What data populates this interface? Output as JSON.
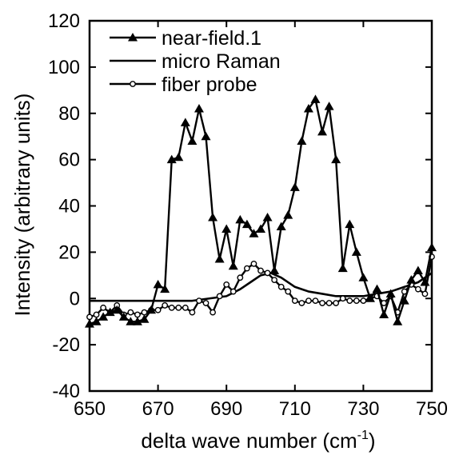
{
  "chart_data": {
    "type": "line",
    "xlabel": "delta wave number (cm",
    "xlabel_sup": "-1",
    "xlabel_close": ")",
    "ylabel": "Intensity (arbitrary units)",
    "xlim": [
      650,
      750
    ],
    "ylim": [
      -40,
      120
    ],
    "xticks": [
      650,
      670,
      690,
      710,
      730,
      750
    ],
    "yticks": [
      -40,
      -20,
      0,
      20,
      40,
      60,
      80,
      100,
      120
    ],
    "legend_position": "top-left",
    "grid": false,
    "series": [
      {
        "name": "near-field.1",
        "marker": "triangle",
        "x": [
          650,
          652,
          654,
          656,
          658,
          660,
          662,
          664,
          666,
          668,
          670,
          672,
          674,
          676,
          678,
          680,
          682,
          684,
          686,
          688,
          690,
          692,
          694,
          696,
          698,
          700,
          702,
          704,
          706,
          708,
          710,
          712,
          714,
          716,
          718,
          720,
          722,
          724,
          726,
          728,
          730,
          732,
          734,
          736,
          738,
          740,
          742,
          744,
          746,
          748,
          750
        ],
        "y": [
          -11,
          -10,
          -8,
          -6,
          -5,
          -8,
          -10,
          -10,
          -9,
          -5,
          6,
          4,
          60,
          61,
          76,
          68,
          82,
          70,
          35,
          17,
          30,
          14,
          34,
          32,
          28,
          30,
          35,
          12,
          31,
          36,
          48,
          68,
          82,
          86,
          72,
          83,
          60,
          13,
          32,
          20,
          9,
          0,
          4,
          -7,
          2,
          -10,
          -1,
          8,
          12,
          7,
          22
        ]
      },
      {
        "name": "micro Raman",
        "marker": "none",
        "x": [
          650,
          655,
          660,
          665,
          670,
          675,
          680,
          685,
          690,
          694,
          697,
          700,
          703,
          706,
          710,
          714,
          718,
          722,
          726,
          730,
          734,
          738,
          742,
          746,
          750
        ],
        "y": [
          -1,
          -1,
          -1,
          -1,
          -1,
          -1,
          -1,
          0,
          1,
          4,
          7,
          10,
          11,
          9,
          5,
          3,
          2,
          1,
          1,
          1,
          2,
          3,
          5,
          7,
          11
        ]
      },
      {
        "name": "fiber probe",
        "marker": "circle",
        "x": [
          650,
          652,
          654,
          656,
          658,
          660,
          662,
          664,
          666,
          668,
          670,
          672,
          674,
          676,
          678,
          680,
          682,
          684,
          686,
          688,
          690,
          692,
          694,
          696,
          698,
          700,
          702,
          704,
          706,
          708,
          710,
          712,
          714,
          716,
          718,
          720,
          722,
          724,
          726,
          728,
          730,
          732,
          734,
          736,
          738,
          740,
          742,
          744,
          746,
          748,
          750
        ],
        "y": [
          -8,
          -7,
          -4,
          -6,
          -3,
          -7,
          -6,
          -7,
          -6,
          -5,
          -5,
          -3,
          -4,
          -4,
          -4,
          -6,
          -1,
          -2,
          -6,
          1,
          6,
          3,
          9,
          13,
          15,
          12,
          11,
          8,
          5,
          3,
          -1,
          -2,
          -1,
          -1,
          -2,
          -2,
          -2,
          0,
          -1,
          -1,
          -1,
          0,
          1,
          -2,
          1,
          -6,
          3,
          6,
          4,
          2,
          18
        ]
      }
    ]
  }
}
